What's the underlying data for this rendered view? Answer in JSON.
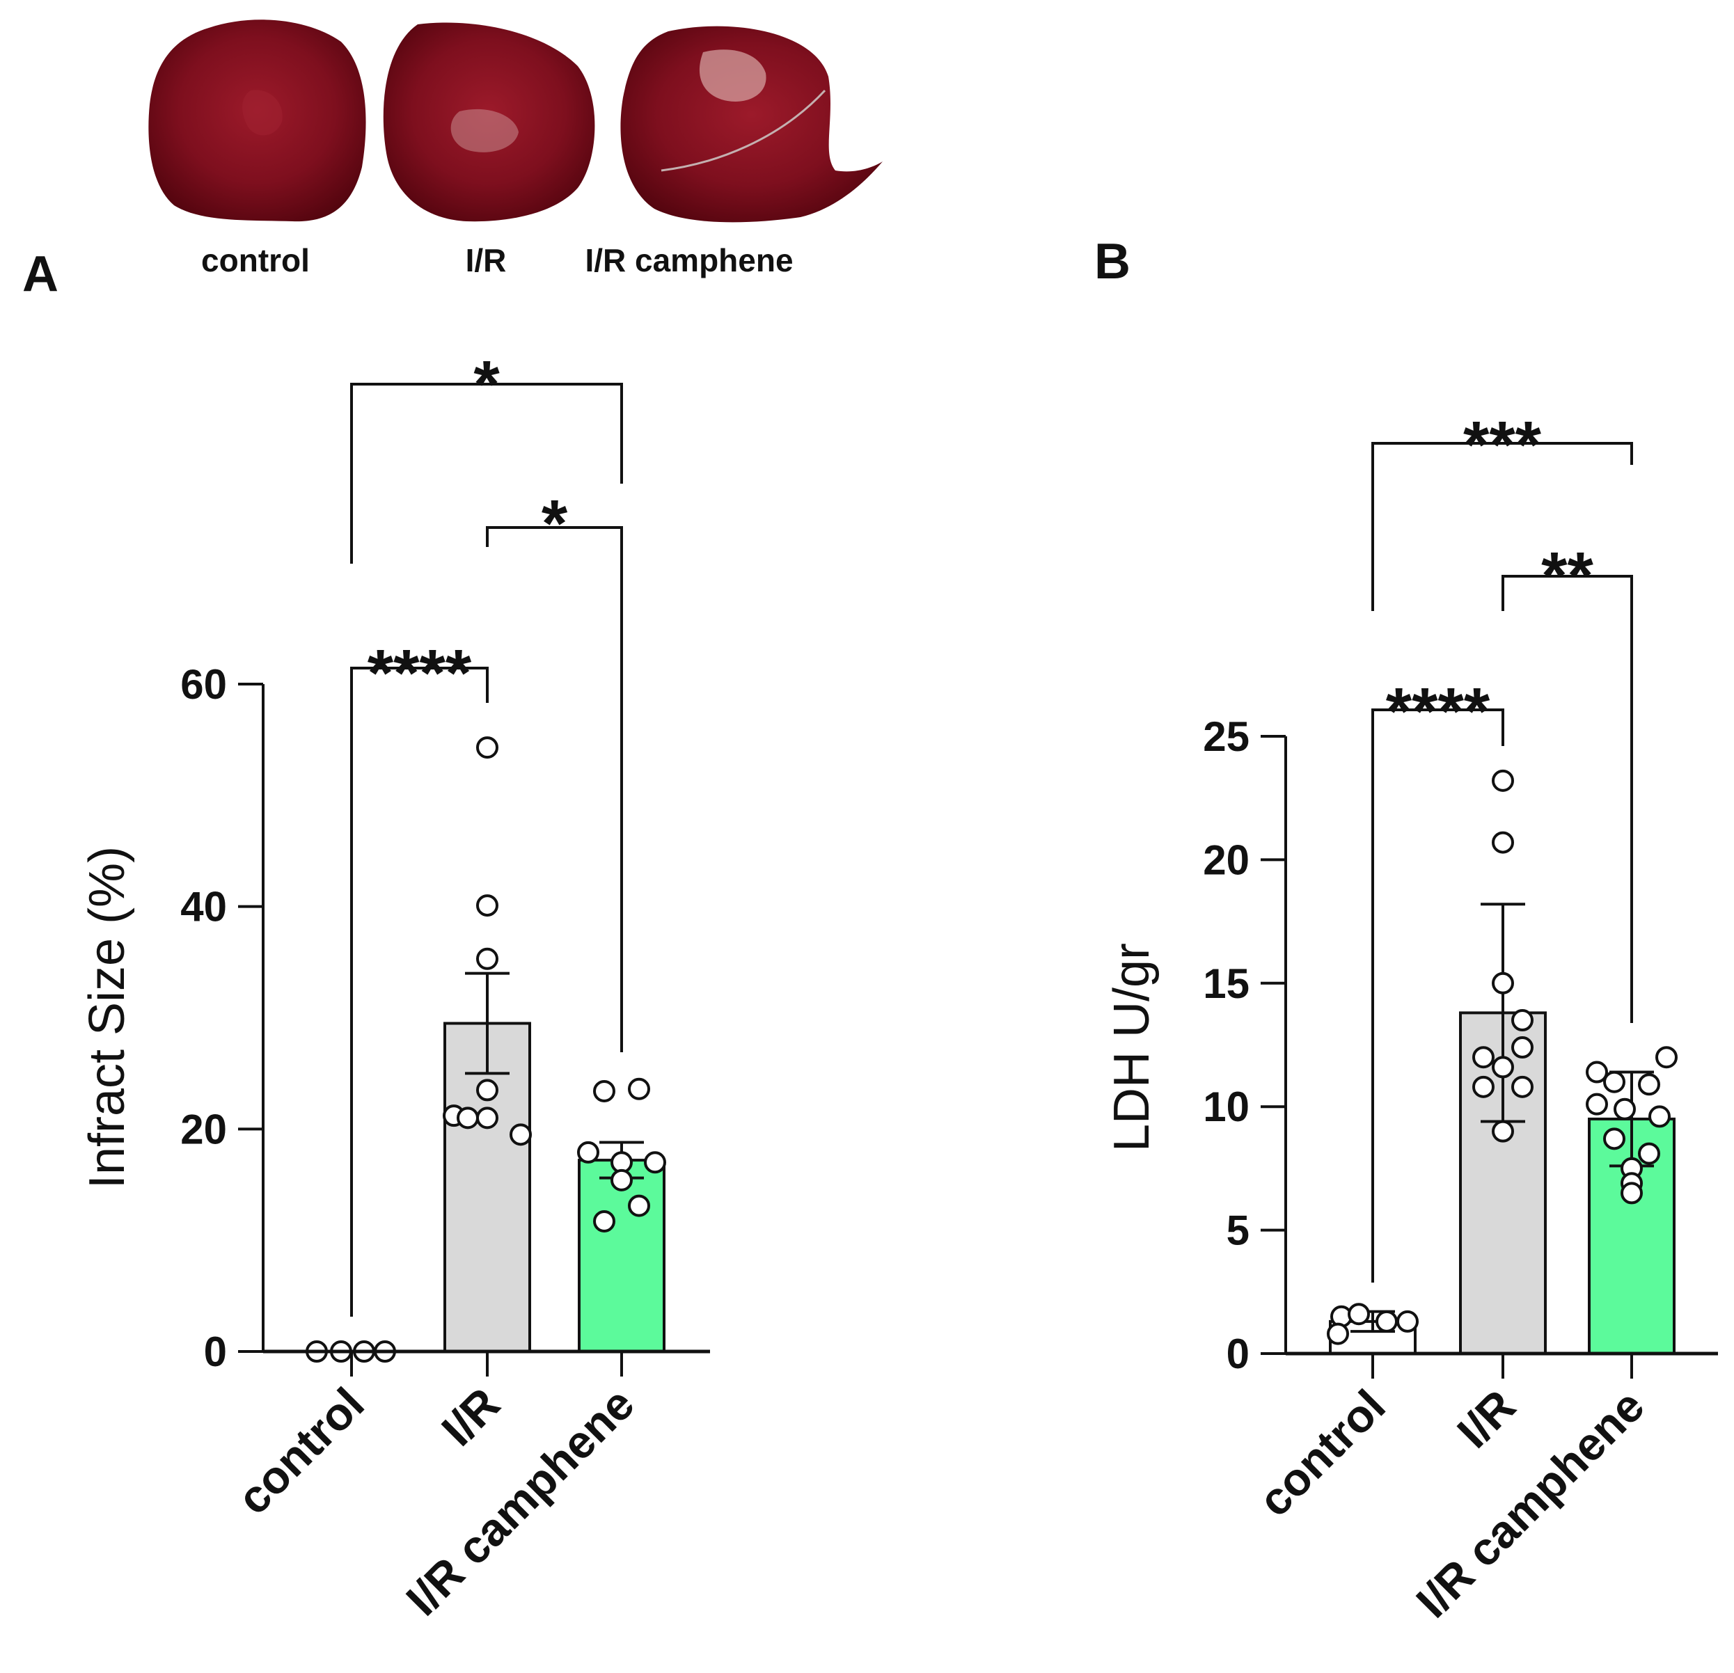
{
  "photos": {
    "labels": [
      "control",
      "I/R",
      "I/R camphene"
    ],
    "colors": {
      "tissue_dark": "#5a0812",
      "tissue_mid": "#8b1221",
      "tissue_light": "#b43c47",
      "pale": "#d9a8a6"
    }
  },
  "colors": {
    "control_bar": "#ffffff",
    "ir_bar": "#d9d9d9",
    "camphene_bar": "#5cfa9b",
    "axis": "#111111",
    "point_stroke": "#111111"
  },
  "chart_data": [
    {
      "panel": "A",
      "type": "bar",
      "title": "",
      "ylabel": "Infract Size (%)",
      "xlabel": "",
      "ylim": [
        0,
        60
      ],
      "yticks": [
        "0",
        "20",
        "40",
        "60"
      ],
      "categories": [
        "control",
        "I/R",
        "I/R camphene"
      ],
      "values": [
        0,
        29.5,
        17.2
      ],
      "errors": [
        0,
        4.5,
        1.6
      ],
      "points": [
        [
          0,
          0,
          0,
          0
        ],
        [
          54.3,
          40.1,
          35.3,
          23.5,
          21.2,
          21.0,
          21.0,
          19.5
        ],
        [
          23.4,
          23.6,
          17.9,
          17.0,
          17.0,
          15.4,
          13.1,
          11.7
        ]
      ],
      "significance": [
        {
          "pair": [
            "control",
            "I/R camphene"
          ],
          "label": "*"
        },
        {
          "pair": [
            "I/R",
            "I/R camphene"
          ],
          "label": "*"
        },
        {
          "pair": [
            "control",
            "I/R"
          ],
          "label": "****"
        }
      ]
    },
    {
      "panel": "B",
      "type": "bar",
      "title": "",
      "ylabel": "LDH U/gr",
      "xlabel": "",
      "ylim": [
        0,
        25
      ],
      "yticks": [
        "0",
        "5",
        "10",
        "15",
        "20",
        "25"
      ],
      "categories": [
        "control",
        "I/R",
        "I/R camphene"
      ],
      "values": [
        1.3,
        13.8,
        9.5
      ],
      "errors": [
        0.4,
        4.4,
        1.9
      ],
      "points": [
        [
          1.5,
          1.6,
          0.8,
          1.3,
          1.3
        ],
        [
          23.2,
          20.7,
          15.0,
          13.5,
          12.0,
          12.4,
          11.6,
          10.8,
          10.8,
          9.0
        ],
        [
          11.4,
          11.0,
          12.0,
          10.9,
          10.1,
          9.9,
          9.6,
          8.1,
          8.7,
          7.5,
          6.9,
          6.5
        ]
      ],
      "significance": [
        {
          "pair": [
            "control",
            "I/R camphene"
          ],
          "label": "***"
        },
        {
          "pair": [
            "I/R",
            "I/R camphene"
          ],
          "label": "**"
        },
        {
          "pair": [
            "control",
            "I/R"
          ],
          "label": "****"
        }
      ]
    }
  ]
}
